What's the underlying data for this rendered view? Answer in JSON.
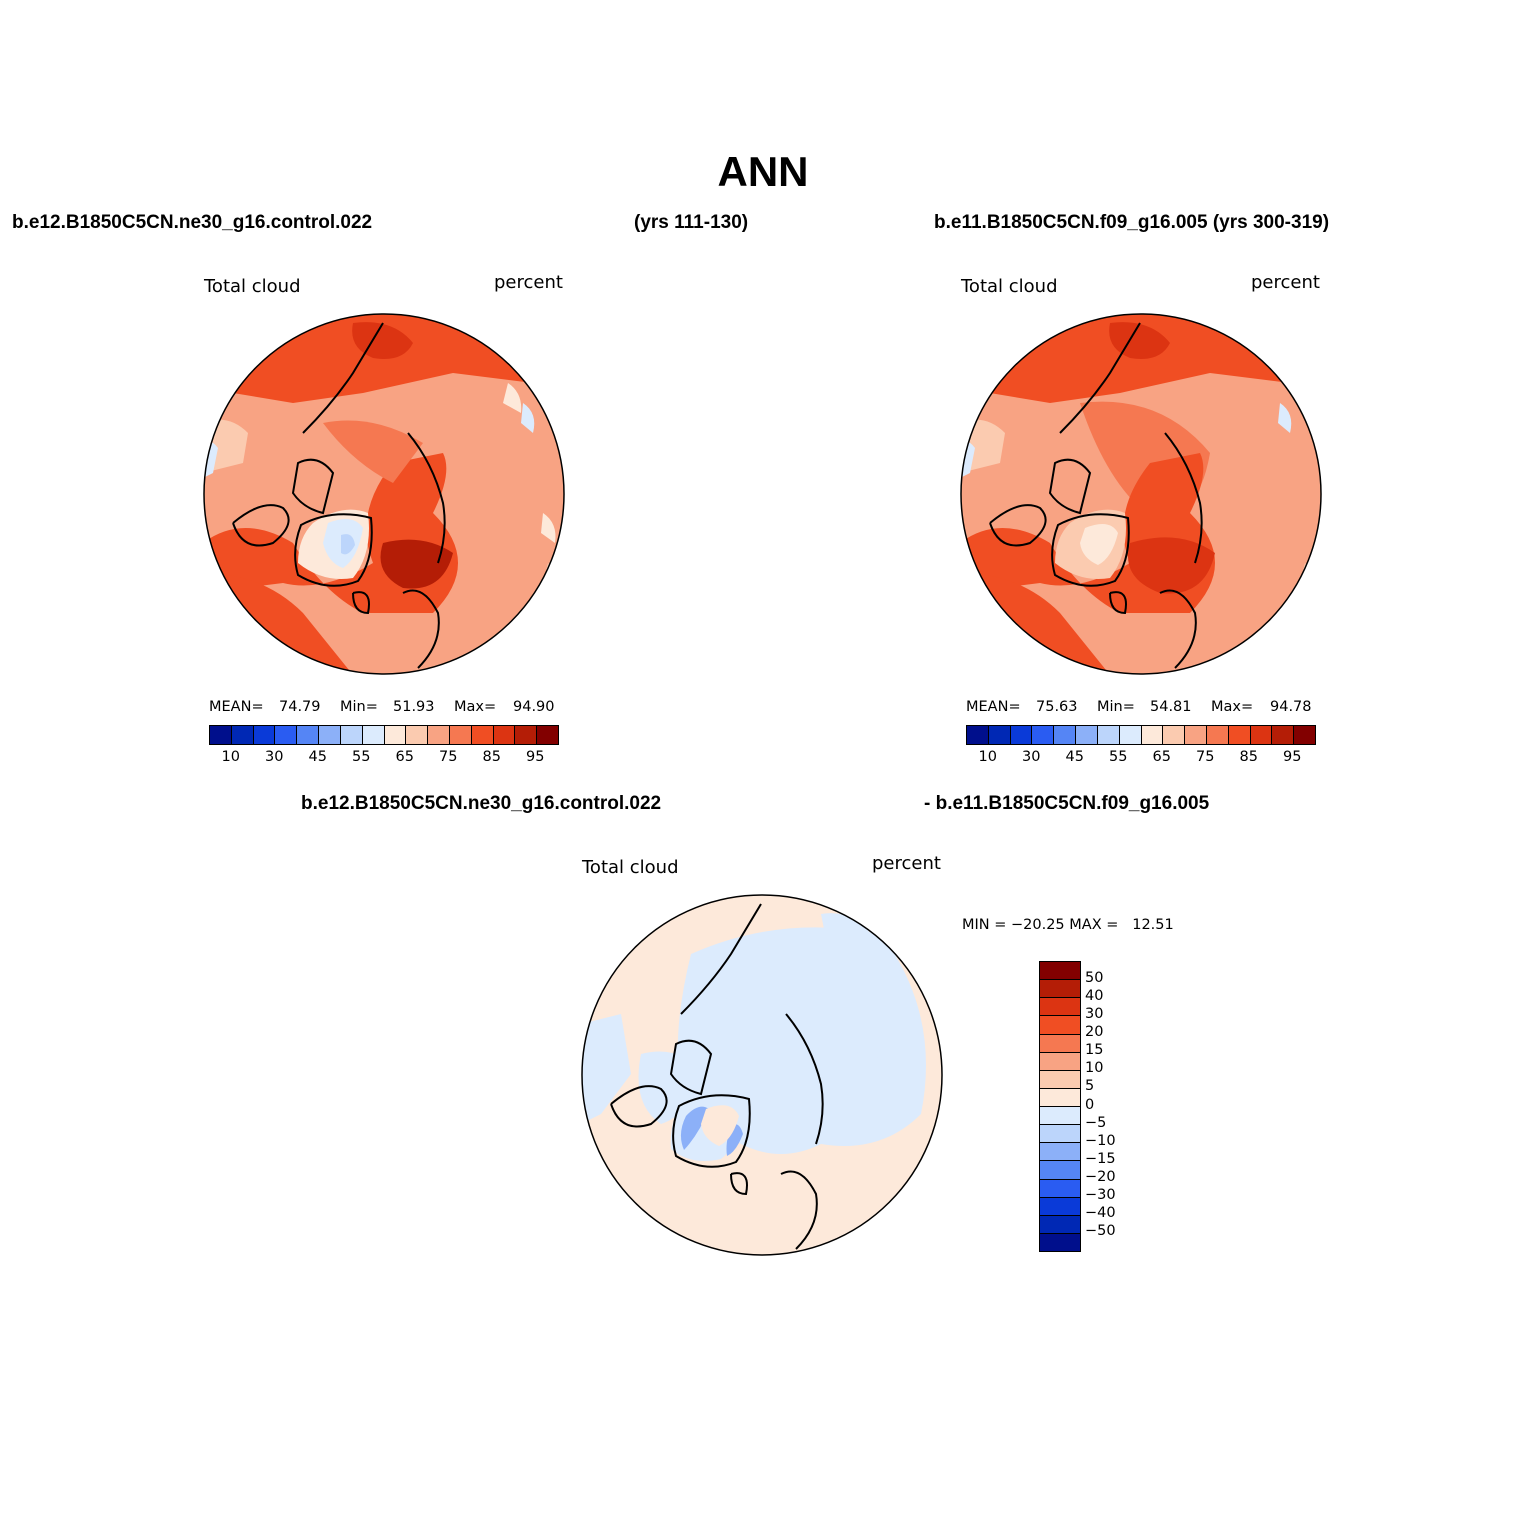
{
  "figure": {
    "title": "ANN",
    "case1_name": "b.e12.B1850C5CN.ne30_g16.control.022",
    "case1_years": "(yrs 111-130)",
    "case2_label": "b.e11.B1850C5CN.f09_g16.005 (yrs 300-319)",
    "diff_case1": "b.e12.B1850C5CN.ne30_g16.control.022",
    "diff_case2": "- b.e11.B1850C5CN.f09_g16.005"
  },
  "panels": [
    {
      "variable": "Total cloud",
      "units": "percent",
      "mean_label": "MEAN=",
      "mean": "74.79",
      "min_label": "Min=",
      "min": "51.93",
      "max_label": "Max=",
      "max": "94.90"
    },
    {
      "variable": "Total cloud",
      "units": "percent",
      "mean_label": "MEAN=",
      "mean": "75.63",
      "min_label": "Min=",
      "min": "54.81",
      "max_label": "Max=",
      "max": "94.78"
    }
  ],
  "diff_panel": {
    "variable": "Total cloud",
    "units": "percent",
    "minmax_text": "MIN = −20.25 MAX =   12.51"
  },
  "abs_colorbar": {
    "ticks": [
      "10",
      "30",
      "45",
      "55",
      "65",
      "75",
      "85",
      "95"
    ],
    "colors": [
      "#000f8c",
      "#0028b4",
      "#0a3ad8",
      "#2a5cf2",
      "#5585f5",
      "#8cb0f8",
      "#bcd5fb",
      "#dcebfd",
      "#fde9da",
      "#fbcbb0",
      "#f8a383",
      "#f57851",
      "#f04e23",
      "#dc3412",
      "#b41d06",
      "#820000"
    ]
  },
  "diff_colorbar": {
    "ticks": [
      "50",
      "40",
      "30",
      "20",
      "15",
      "10",
      "5",
      "0",
      "−5",
      "−10",
      "−15",
      "−20",
      "−30",
      "−40",
      "−50"
    ],
    "colors": [
      "#820000",
      "#b41d06",
      "#dc3412",
      "#f04e23",
      "#f57851",
      "#f8a383",
      "#fbcbb0",
      "#fde9da",
      "#dcebfd",
      "#bcd5fb",
      "#8cb0f8",
      "#5585f5",
      "#2a5cf2",
      "#0a3ad8",
      "#0028b4",
      "#000f8c"
    ]
  }
}
